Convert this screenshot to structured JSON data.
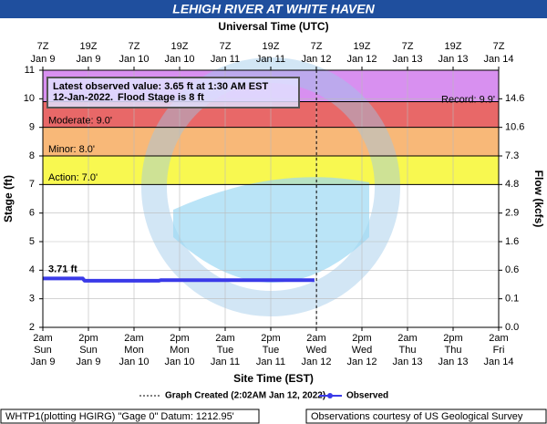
{
  "chart_data": {
    "type": "line",
    "title": "LEHIGH RIVER AT WHITE HAVEN",
    "top_axis_title": "Universal Time (UTC)",
    "x_label": "Site Time (EST)",
    "y_label": "Stage (ft)",
    "y2_label": "Flow (kcfs)",
    "xlim": [
      "2022-01-09T02:00-05:00",
      "2022-01-14T02:00-05:00"
    ],
    "ylim": [
      2,
      11
    ],
    "yticks": [
      2,
      3,
      4,
      5,
      6,
      7,
      8,
      9,
      10,
      11
    ],
    "grid": true,
    "xticks": [
      {
        "value": "2022-01-09T02:00-05:00",
        "time": "2am",
        "day": "Sun",
        "date": "Jan 9"
      },
      {
        "value": "2022-01-09T14:00-05:00",
        "time": "2pm",
        "day": "Sun",
        "date": "Jan 9"
      },
      {
        "value": "2022-01-10T02:00-05:00",
        "time": "2am",
        "day": "Mon",
        "date": "Jan 10"
      },
      {
        "value": "2022-01-10T14:00-05:00",
        "time": "2pm",
        "day": "Mon",
        "date": "Jan 10"
      },
      {
        "value": "2022-01-11T02:00-05:00",
        "time": "2am",
        "day": "Tue",
        "date": "Jan 11"
      },
      {
        "value": "2022-01-11T14:00-05:00",
        "time": "2pm",
        "day": "Tue",
        "date": "Jan 11"
      },
      {
        "value": "2022-01-12T02:00-05:00",
        "time": "2am",
        "day": "Wed",
        "date": "Jan 12"
      },
      {
        "value": "2022-01-12T14:00-05:00",
        "time": "2pm",
        "day": "Wed",
        "date": "Jan 12"
      },
      {
        "value": "2022-01-13T02:00-05:00",
        "time": "2am",
        "day": "Thu",
        "date": "Jan 13"
      },
      {
        "value": "2022-01-13T14:00-05:00",
        "time": "2pm",
        "day": "Thu",
        "date": "Jan 13"
      },
      {
        "value": "2022-01-14T02:00-05:00",
        "time": "2am",
        "day": "Fri",
        "date": "Jan 14"
      }
    ],
    "top_xticks": [
      {
        "value": "2022-01-09T07:00Z",
        "time": "7Z",
        "date": "Jan 9"
      },
      {
        "value": "2022-01-09T19:00Z",
        "time": "19Z",
        "date": "Jan 9"
      },
      {
        "value": "2022-01-10T07:00Z",
        "time": "7Z",
        "date": "Jan 10"
      },
      {
        "value": "2022-01-10T19:00Z",
        "time": "19Z",
        "date": "Jan 10"
      },
      {
        "value": "2022-01-11T07:00Z",
        "time": "7Z",
        "date": "Jan 11"
      },
      {
        "value": "2022-01-11T19:00Z",
        "time": "19Z",
        "date": "Jan 11"
      },
      {
        "value": "2022-01-12T07:00Z",
        "time": "7Z",
        "date": "Jan 12"
      },
      {
        "value": "2022-01-12T19:00Z",
        "time": "19Z",
        "date": "Jan 12"
      },
      {
        "value": "2022-01-13T07:00Z",
        "time": "7Z",
        "date": "Jan 13"
      },
      {
        "value": "2022-01-13T19:00Z",
        "time": "19Z",
        "date": "Jan 13"
      },
      {
        "value": "2022-01-14T07:00Z",
        "time": "7Z",
        "date": "Jan 14"
      }
    ],
    "flow_ticks": [
      {
        "stage": 2,
        "flow": {
          "value": 0,
          "label": "0.0"
        }
      },
      {
        "stage": 3,
        "flow": 0.1
      },
      {
        "stage": 4,
        "flow": 0.6
      },
      {
        "stage": 5,
        "flow": 1.6
      },
      {
        "stage": 6,
        "flow": 2.9
      },
      {
        "stage": 7,
        "flow": 4.8
      },
      {
        "stage": 8,
        "flow": 7.3
      },
      {
        "stage": 9,
        "flow": 10.6
      },
      {
        "stage": 10,
        "flow": 14.6
      }
    ],
    "flood_categories": [
      {
        "label": "Action: 7.0'",
        "value": 7,
        "color": "#f8f850"
      },
      {
        "label": "Minor: 8.0'",
        "value": 8,
        "color": "#f8b878"
      },
      {
        "label": "Moderate: 9.0'",
        "value": 9,
        "color": "#e86868"
      }
    ],
    "record": {
      "label": "Record: 9.9'",
      "value": 9.9,
      "color": "#d890f0"
    },
    "created": "2022-01-12T02:02-05:00",
    "series": [
      {
        "name": "Observed",
        "color": "#3a3ae8",
        "x": [
          "2022-01-09T02:00-05:00",
          "2022-01-09T12:30-05:00",
          "2022-01-09T13:00-05:00",
          "2022-01-10T08:30-05:00",
          "2022-01-10T09:00-05:00",
          "2022-01-12T01:30-05:00"
        ],
        "values": [
          3.71,
          3.71,
          3.63,
          3.63,
          3.65,
          3.65
        ],
        "value_labels": [
          "3.71 ft",
          null,
          null,
          null,
          null,
          null
        ]
      }
    ],
    "annotation": {
      "observed_lines": [
        "Latest observed value: 3.65 ft at 1:30 AM EST",
        "12-Jan-2022."
      ],
      "flood_stage": "Flood Stage is 8 ft"
    },
    "legend": {
      "created": "Graph Created (2:02AM Jan 12, 2022)"
    },
    "footer": {
      "left": "WHTP1(plotting HGIRG) \"Gage 0\" Datum: 1212.95'",
      "right": "Observations courtesy of US Geological Survey"
    }
  }
}
